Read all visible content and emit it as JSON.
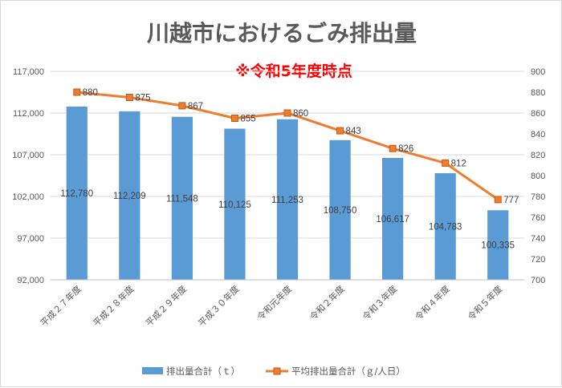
{
  "chart_data": {
    "type": "bar",
    "title": "川越市におけるごみ排出量",
    "annotation": "※令和5年度時点",
    "categories": [
      "平成２７年度",
      "平成２８年度",
      "平成２９年度",
      "平成３０年度",
      "令和元年度",
      "令和２年度",
      "令和３年度",
      "令和４年度",
      "令和５年度"
    ],
    "series": [
      {
        "name": "排出量合計（ｔ）",
        "type": "bar",
        "axis": "left",
        "color": "#5b9bd5",
        "values": [
          112780,
          112209,
          111548,
          110125,
          111253,
          108750,
          106617,
          104783,
          100335
        ],
        "labels": [
          "112,780",
          "112,209",
          "111,548",
          "110,125",
          "111,253",
          "108,750",
          "106,617",
          "104,783",
          "100,335"
        ]
      },
      {
        "name": "平均排出量合計（ｇ/人日）",
        "type": "line",
        "axis": "right",
        "color": "#ed7d31",
        "values": [
          880,
          875,
          867,
          855,
          860,
          843,
          826,
          812,
          777
        ],
        "labels": [
          "880",
          "875",
          "867",
          "855",
          "860",
          "843",
          "826",
          "812",
          "777"
        ]
      }
    ],
    "ylim_left": [
      92000,
      117000
    ],
    "yticks_left": [
      "92,000",
      "97,000",
      "102,000",
      "107,000",
      "112,000",
      "117,000"
    ],
    "ylim_right": [
      700,
      900
    ],
    "yticks_right": [
      "700",
      "720",
      "740",
      "760",
      "780",
      "800",
      "820",
      "840",
      "860",
      "880",
      "900"
    ],
    "grid": true,
    "legend_position": "bottom"
  }
}
